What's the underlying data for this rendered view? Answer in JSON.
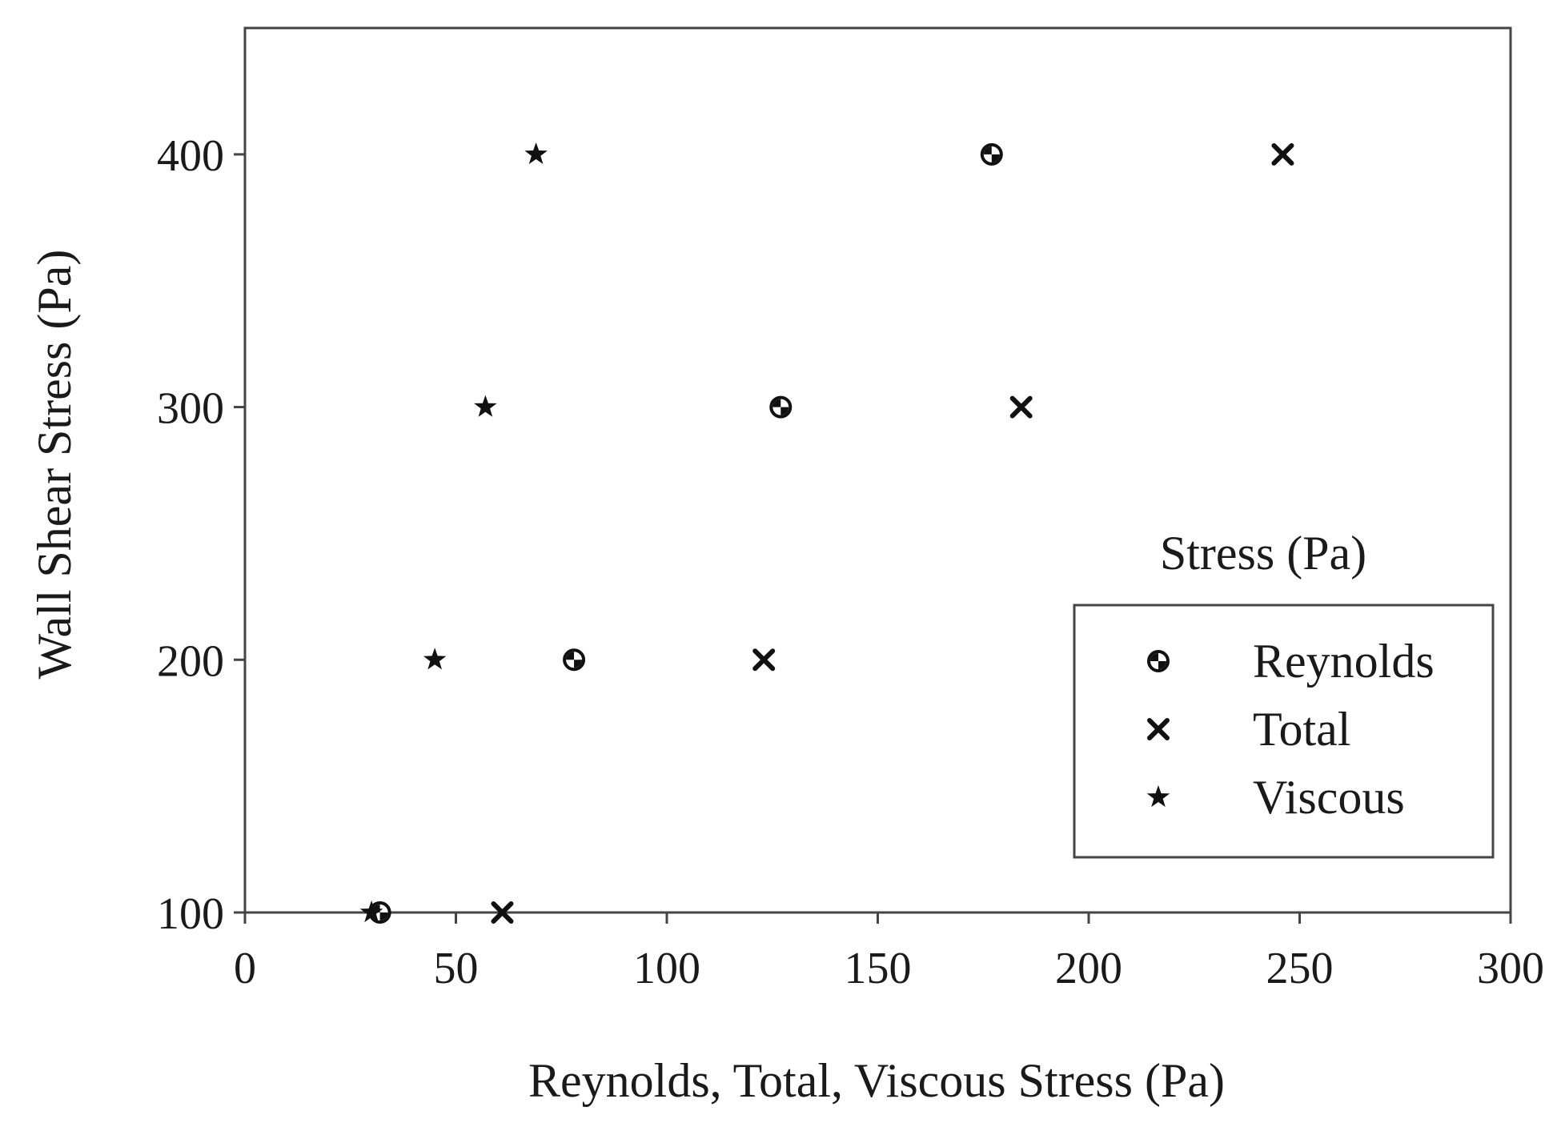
{
  "chart_data": {
    "type": "scatter",
    "title": "",
    "xlabel": "Reynolds, Total, Viscous Stress (Pa)",
    "ylabel": "Wall Shear Stress (Pa)",
    "xlim": [
      0,
      300
    ],
    "ylim": [
      100,
      450
    ],
    "xticks": [
      0,
      50,
      100,
      150,
      200,
      250,
      300
    ],
    "yticks": [
      100,
      200,
      300,
      400
    ],
    "grid": false,
    "legend": {
      "title": "Stress (Pa)",
      "position": "right",
      "entries": [
        "Reynolds",
        "Total",
        "Viscous"
      ]
    },
    "series": [
      {
        "name": "Reynolds",
        "marker": "shaded-circle",
        "points": [
          [
            32,
            100
          ],
          [
            78,
            200
          ],
          [
            127,
            300
          ],
          [
            177,
            400
          ]
        ]
      },
      {
        "name": "Total",
        "marker": "x",
        "points": [
          [
            61,
            100
          ],
          [
            123,
            200
          ],
          [
            184,
            300
          ],
          [
            246,
            400
          ]
        ]
      },
      {
        "name": "Viscous",
        "marker": "star",
        "points": [
          [
            30,
            100
          ],
          [
            45,
            200
          ],
          [
            57,
            300
          ],
          [
            69,
            400
          ]
        ]
      }
    ],
    "colors": {
      "axis": "#444444",
      "marker": "#111111",
      "text": "#1a1a1a"
    }
  }
}
